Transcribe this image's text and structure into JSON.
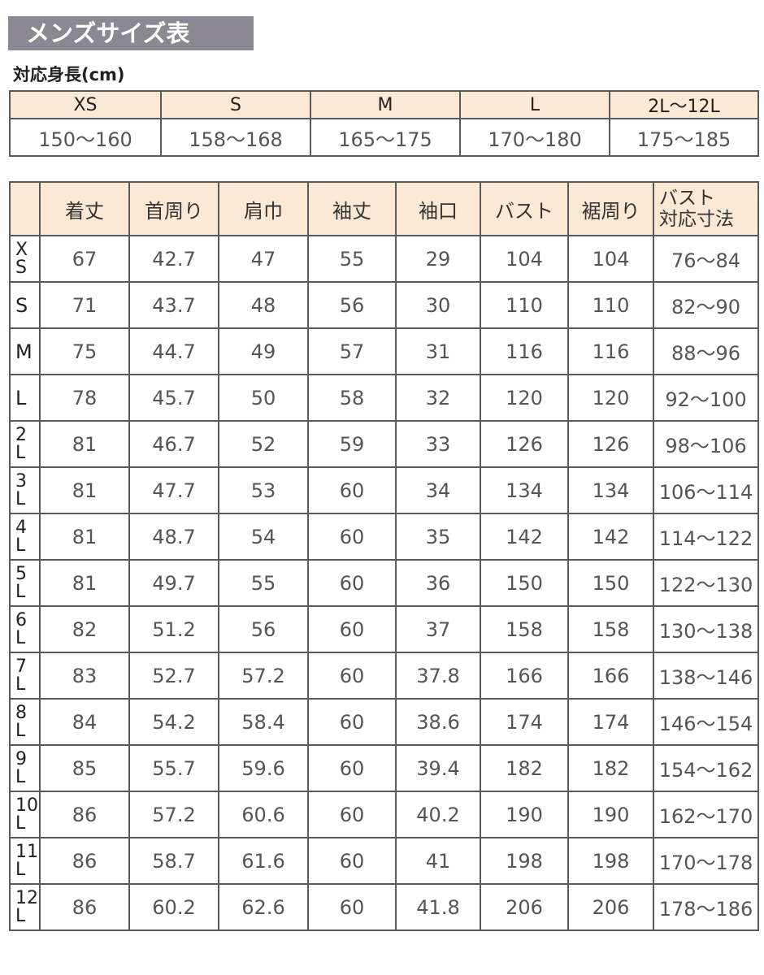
{
  "title": "メンズサイズ表",
  "height_section": {
    "label": "対応身長(cm)",
    "sizes": [
      "XS",
      "S",
      "M",
      "L",
      "2L〜12L"
    ],
    "ranges": [
      "150〜160",
      "158〜168",
      "165〜175",
      "170〜180",
      "175〜185"
    ]
  },
  "size_table": {
    "headers": [
      "着丈",
      "首周り",
      "肩巾",
      "袖丈",
      "袖口",
      "バスト",
      "裾周り"
    ],
    "last_header": [
      "バスト",
      "対応寸法"
    ],
    "rows": [
      {
        "size": [
          "X",
          "S"
        ],
        "values": [
          "67",
          "42.7",
          "47",
          "55",
          "29",
          "104",
          "104",
          "76〜84"
        ]
      },
      {
        "size": [
          "S"
        ],
        "values": [
          "71",
          "43.7",
          "48",
          "56",
          "30",
          "110",
          "110",
          "82〜90"
        ]
      },
      {
        "size": [
          "M"
        ],
        "values": [
          "75",
          "44.7",
          "49",
          "57",
          "31",
          "116",
          "116",
          "88〜96"
        ]
      },
      {
        "size": [
          "L"
        ],
        "values": [
          "78",
          "45.7",
          "50",
          "58",
          "32",
          "120",
          "120",
          "92〜100"
        ]
      },
      {
        "size": [
          "2",
          "L"
        ],
        "values": [
          "81",
          "46.7",
          "52",
          "59",
          "33",
          "126",
          "126",
          "98〜106"
        ]
      },
      {
        "size": [
          "3",
          "L"
        ],
        "values": [
          "81",
          "47.7",
          "53",
          "60",
          "34",
          "134",
          "134",
          "106〜114"
        ]
      },
      {
        "size": [
          "4",
          "L"
        ],
        "values": [
          "81",
          "48.7",
          "54",
          "60",
          "35",
          "142",
          "142",
          "114〜122"
        ]
      },
      {
        "size": [
          "5",
          "L"
        ],
        "values": [
          "81",
          "49.7",
          "55",
          "60",
          "36",
          "150",
          "150",
          "122〜130"
        ]
      },
      {
        "size": [
          "6",
          "L"
        ],
        "values": [
          "82",
          "51.2",
          "56",
          "60",
          "37",
          "158",
          "158",
          "130〜138"
        ]
      },
      {
        "size": [
          "7",
          "L"
        ],
        "values": [
          "83",
          "52.7",
          "57.2",
          "60",
          "37.8",
          "166",
          "166",
          "138〜146"
        ]
      },
      {
        "size": [
          "8",
          "L"
        ],
        "values": [
          "84",
          "54.2",
          "58.4",
          "60",
          "38.6",
          "174",
          "174",
          "146〜154"
        ]
      },
      {
        "size": [
          "9",
          "L"
        ],
        "values": [
          "85",
          "55.7",
          "59.6",
          "60",
          "39.4",
          "182",
          "182",
          "154〜162"
        ]
      },
      {
        "size": [
          "10",
          "L"
        ],
        "values": [
          "86",
          "57.2",
          "60.6",
          "60",
          "40.2",
          "190",
          "190",
          "162〜170"
        ]
      },
      {
        "size": [
          "11",
          "L"
        ],
        "values": [
          "86",
          "58.7",
          "61.6",
          "60",
          "41",
          "198",
          "198",
          "170〜178"
        ]
      },
      {
        "size": [
          "12",
          "L"
        ],
        "values": [
          "86",
          "60.2",
          "62.6",
          "60",
          "41.8",
          "206",
          "206",
          "178〜186"
        ]
      }
    ]
  },
  "colors": {
    "title_bg": "#8b8894",
    "header_bg": "#fbe8d5",
    "border": "#5a5a5a"
  }
}
